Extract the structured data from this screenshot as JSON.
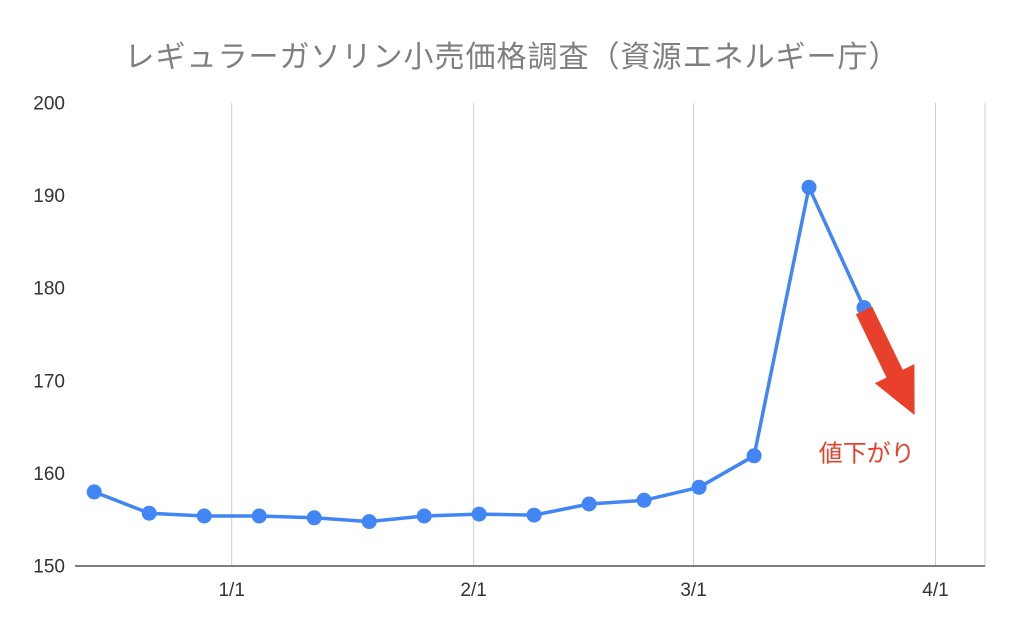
{
  "page": {
    "background_color": "#ffffff"
  },
  "chart_data": {
    "type": "line",
    "title": "レギュラーガソリン小売価格調査（資源エネルギー庁）",
    "title_color": "#7f7f7f",
    "xlabel": "",
    "ylabel": "",
    "xlim": [
      -0.35,
      16.2
    ],
    "ylim": [
      150,
      200
    ],
    "y_ticks": [
      150,
      160,
      170,
      180,
      190,
      200
    ],
    "x_ticks": [
      {
        "label": "1/1",
        "x": 2.5
      },
      {
        "label": "2/1",
        "x": 6.9
      },
      {
        "label": "3/1",
        "x": 10.9
      },
      {
        "label": "4/1",
        "x": 15.3
      }
    ],
    "series": [
      {
        "name": "レギュラーガソリン小売価格",
        "color": "#4285f4",
        "x": [
          0,
          1,
          2,
          3,
          4,
          5,
          6,
          7,
          8,
          9,
          10,
          11,
          12,
          13,
          14
        ],
        "values": [
          158.0,
          155.7,
          155.4,
          155.4,
          155.2,
          154.8,
          155.4,
          155.6,
          155.5,
          156.7,
          157.1,
          158.5,
          161.9,
          190.9,
          177.9
        ]
      }
    ],
    "grid": {
      "vertical": true,
      "horizontal": false,
      "color": "#cccccc",
      "right_border": true
    },
    "axis_color": "#555555",
    "tick_label_color": "#333333",
    "legend": "none",
    "annotation": {
      "text": "値下がり",
      "text_color": "#e8402b",
      "text_pos": {
        "x": 14.05,
        "y": 161.3
      },
      "arrow": {
        "color": "#e8402b",
        "from": {
          "x": 14.0,
          "y": 177.6
        },
        "to": {
          "x": 14.92,
          "y": 166.3
        }
      }
    }
  }
}
